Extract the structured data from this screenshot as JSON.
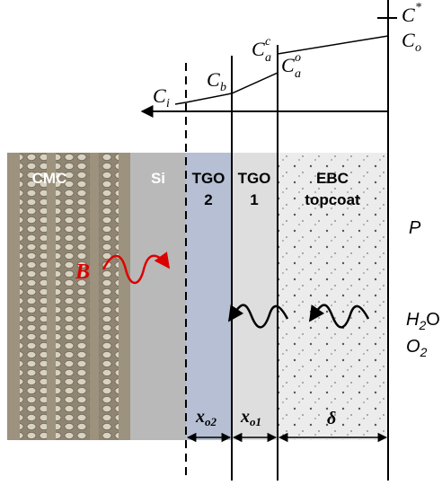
{
  "plot": {
    "labels": {
      "c_star": {
        "base": "C",
        "sup": "*"
      },
      "c_o": {
        "base": "C",
        "sub": "o"
      },
      "c_a_c": {
        "base": "C",
        "sup": "c",
        "sub": "a"
      },
      "c_a_o": {
        "base": "C",
        "sup": "o",
        "sub": "a"
      },
      "c_b": {
        "base": "C",
        "sub": "b"
      },
      "c_i": {
        "base": "C",
        "sub": "i"
      }
    }
  },
  "layers": {
    "cmc": {
      "line1": "CMC"
    },
    "si": {
      "line1": "Si"
    },
    "tgo2": {
      "line1": "TGO",
      "line2": "2"
    },
    "tgo1": {
      "line1": "TGO",
      "line2": "1"
    },
    "ebc": {
      "line1": "EBC",
      "line2": "topcoat"
    }
  },
  "flux_label": "B",
  "environment": {
    "pressure": "P",
    "water": {
      "base": "H",
      "sub": "2",
      "tail": "O"
    },
    "oxygen": {
      "base": "O",
      "sub": "2"
    }
  },
  "dimensions": {
    "x_o2": {
      "base": "x",
      "sub": "o2"
    },
    "x_o1": {
      "base": "x",
      "sub": "o1"
    },
    "delta": "δ"
  }
}
